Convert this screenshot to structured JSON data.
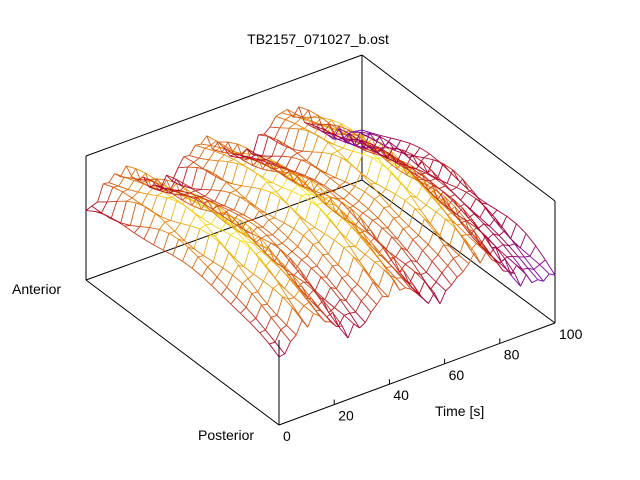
{
  "chart_data": {
    "type": "surface-mesh",
    "title": "TB2157_071027_b.ost",
    "x_axis": {
      "label": "Time [s]",
      "range": [
        0,
        100
      ],
      "ticks": [
        0,
        20,
        40,
        60,
        80,
        100
      ],
      "tick_labels": [
        "0",
        "20",
        "40",
        "60",
        "80",
        "100"
      ]
    },
    "y_axis": {
      "label_start": "Anterior",
      "label_end": "Posterior"
    },
    "z_axis": {
      "label": "",
      "tick_labels": []
    },
    "surface": {
      "description": "Periodic ridge surface with roughly three crests over 0-100 s",
      "crest_times_s": [
        12,
        42,
        72
      ],
      "colormap": [
        "#6a00c8",
        "#b0002a",
        "#e07010",
        "#f8f020"
      ]
    },
    "grid": false,
    "legend": "none"
  }
}
